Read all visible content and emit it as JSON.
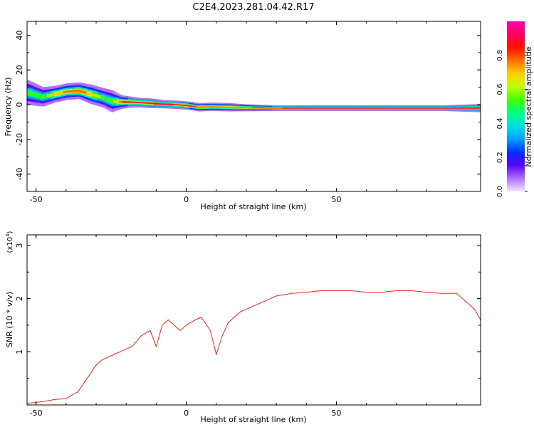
{
  "title": "C2E4.2023.281.04.42.R17",
  "chart_data": [
    {
      "type": "heatmap",
      "xlabel": "Height of straight line (km)",
      "ylabel": "Frequency (Hz)",
      "xlim": [
        -53,
        98
      ],
      "ylim": [
        -50,
        48
      ],
      "x_ticks": [
        "-50",
        "0",
        "50"
      ],
      "y_ticks": [
        "40",
        "20",
        "0",
        "-20",
        "-40"
      ],
      "colorbar": {
        "label": "Normalized spectral amplitude",
        "range": [
          0,
          1
        ],
        "ticks": [
          "0.0",
          "0.2",
          "0.4",
          "0.6",
          "0.8"
        ],
        "colors": [
          "#f0e8ff",
          "#b070ff",
          "#5a00ff",
          "#0030ff",
          "#00a0ff",
          "#00e0e0",
          "#00ff80",
          "#40ff00",
          "#c0ff00",
          "#ffd000",
          "#ff7000",
          "#ff1000",
          "#ff0060",
          "#ff00b0"
        ]
      },
      "ridge": {
        "x": [
          -53,
          -48,
          -44,
          -40,
          -36,
          -32,
          -28,
          -25,
          -22,
          -19,
          -16,
          -12,
          -8,
          -4,
          0,
          4,
          8,
          14,
          20,
          30,
          40,
          55,
          70,
          85,
          98
        ],
        "frequency": [
          7,
          4.5,
          6,
          7.5,
          8,
          6,
          4,
          2,
          1.5,
          1.5,
          1.2,
          0.8,
          0.3,
          0,
          -0.5,
          -1.5,
          -1.2,
          -1.5,
          -1.8,
          -2,
          -2,
          -2,
          -2,
          -2,
          -2
        ],
        "amplitude": [
          0.5,
          0.5,
          0.7,
          0.75,
          0.8,
          0.7,
          0.55,
          0.55,
          0.8,
          0.85,
          0.85,
          0.85,
          0.9,
          0.85,
          0.85,
          0.8,
          0.8,
          0.75,
          0.8,
          0.85,
          0.9,
          0.9,
          0.9,
          0.9,
          0.9
        ],
        "bandwidth_hz": [
          9,
          7,
          6,
          6,
          6,
          7,
          7,
          8,
          5,
          4,
          3.5,
          3.5,
          3,
          3,
          3,
          3,
          3,
          3,
          2.5,
          2,
          2,
          2,
          2,
          2,
          3
        ]
      }
    },
    {
      "type": "line",
      "xlabel": "Height of straight line (km)",
      "ylabel": "SNR (10 * v/v)",
      "y_multiplier": "(x10",
      "y_multiplier_exp": "4",
      "y_multiplier_close": ")",
      "xlim": [
        -53,
        98
      ],
      "ylim": [
        0,
        3.2
      ],
      "x_ticks": [
        "-50",
        "0",
        "50"
      ],
      "y_ticks": [
        "3",
        "2",
        "1"
      ],
      "color": "#e8221f",
      "series": [
        {
          "x": [
            -53,
            -48,
            -44,
            -40,
            -36,
            -33,
            -30,
            -28,
            -26,
            -24,
            -22,
            -20,
            -18,
            -15,
            -12,
            -10,
            -8,
            -6,
            -4,
            -2,
            0,
            3,
            5,
            8,
            10,
            12,
            14,
            18,
            22,
            26,
            30,
            35,
            40,
            45,
            50,
            55,
            60,
            65,
            70,
            75,
            80,
            85,
            90,
            92,
            94,
            96,
            98
          ],
          "y": [
            0.03,
            0.06,
            0.1,
            0.12,
            0.25,
            0.5,
            0.75,
            0.85,
            0.9,
            0.95,
            1.0,
            1.05,
            1.1,
            1.3,
            1.4,
            1.1,
            1.5,
            1.6,
            1.5,
            1.4,
            1.5,
            1.6,
            1.65,
            1.4,
            0.95,
            1.3,
            1.55,
            1.75,
            1.85,
            1.95,
            2.05,
            2.1,
            2.12,
            2.15,
            2.15,
            2.15,
            2.12,
            2.12,
            2.15,
            2.15,
            2.12,
            2.1,
            2.1,
            2.0,
            1.9,
            1.8,
            1.6
          ]
        }
      ]
    }
  ]
}
